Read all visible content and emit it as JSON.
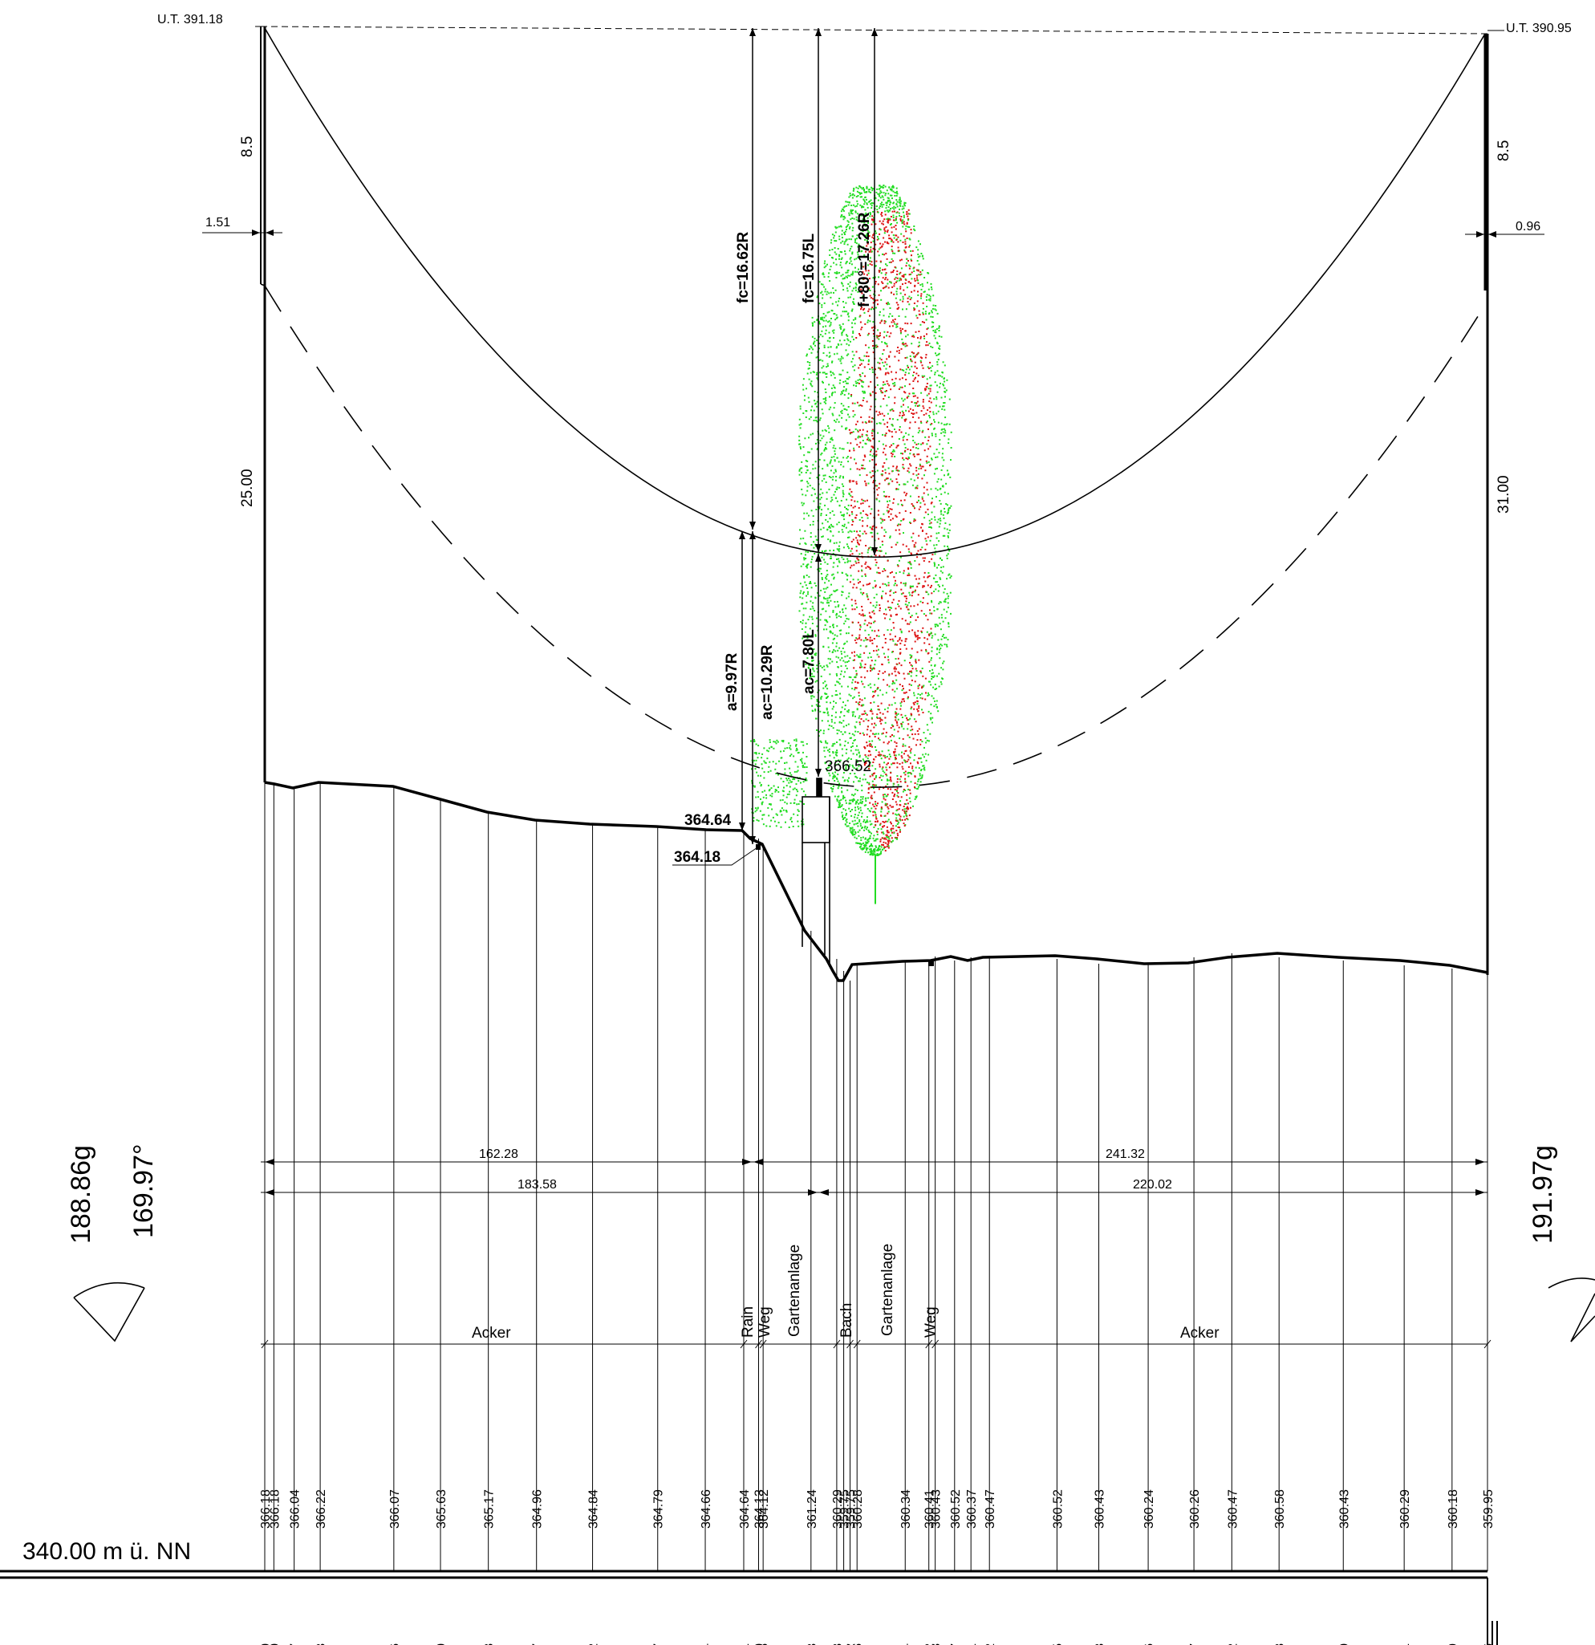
{
  "profile": {
    "left_span": {
      "name": "U.T. 391.18",
      "height_top": "8.5",
      "offset": "1.51",
      "height_main": "25.00",
      "angle_gon": "188.86g",
      "angle_deg": "169.97°"
    },
    "right_span": {
      "name": "U.T. 390.95",
      "height_top": "8.5",
      "offset": "0.96",
      "height_main": "31.00",
      "angle_gon": "191.97g"
    },
    "sag_labels": [
      "fc=16.62R",
      "fc=16.75L",
      "f+80°=17.26R"
    ],
    "clearance_labels": [
      "a=9.97R",
      "ac=10.29R",
      "ac=7.80L"
    ],
    "point_labels": [
      "366.52",
      "364.64",
      "364.18"
    ],
    "span_dims": {
      "left_a": "162.28",
      "right_a": "241.32",
      "left_b": "183.58",
      "right_b": "220.02"
    },
    "datum": "340.00 m ü. NN",
    "land_use": [
      "Acker",
      "Rain",
      "Weg",
      "Gartenanlage",
      "Bach",
      "Gartenanlage",
      "Weg",
      "Acker"
    ],
    "stations": [
      {
        "h": "366.18",
        "d": "0.0"
      },
      {
        "h": "366.18",
        "d": "3.0"
      },
      {
        "h": "366.04",
        "d": "9.7"
      },
      {
        "h": "366.22",
        "d": "18.3"
      },
      {
        "h": "366.07",
        "d": "42.6"
      },
      {
        "h": "365.63",
        "d": "58.0"
      },
      {
        "h": "365.17",
        "d": "73.8"
      },
      {
        "h": "364.96",
        "d": "89.7"
      },
      {
        "h": "364.84",
        "d": "108.2"
      },
      {
        "h": "364.79",
        "d": "129.7"
      },
      {
        "h": "364.66",
        "d": "145.4"
      },
      {
        "h": "364.64",
        "d": "158.1"
      },
      {
        "h": "364.13",
        "d": "163.0"
      },
      {
        "h": "364.12",
        "d": "164.5"
      },
      {
        "h": "361.24",
        "d": "180.3"
      },
      {
        "h": "360.29",
        "d": "188.8"
      },
      {
        "h": "359.75",
        "d": "191.1"
      },
      {
        "h": "359.75",
        "d": "193.2"
      },
      {
        "h": "360.28",
        "d": "195.5"
      },
      {
        "h": "360.34",
        "d": "211.4"
      },
      {
        "h": "360.41",
        "d": "219.2"
      },
      {
        "h": "360.43",
        "d": "221.3"
      },
      {
        "h": "360.52",
        "d": "227.7"
      },
      {
        "h": "360.37",
        "d": "233.1"
      },
      {
        "h": "360.47",
        "d": "239.2"
      },
      {
        "h": "360.52",
        "d": "261.5"
      },
      {
        "h": "360.43",
        "d": "275.3"
      },
      {
        "h": "360.24",
        "d": "291.6"
      },
      {
        "h": "360.26",
        "d": "306.7"
      },
      {
        "h": "360.47",
        "d": "319.2"
      },
      {
        "h": "360.58",
        "d": "334.8"
      },
      {
        "h": "360.43",
        "d": "356.0"
      },
      {
        "h": "360.29",
        "d": "376.1"
      },
      {
        "h": "360.18",
        "d": "391.9"
      },
      {
        "h": "359.95",
        "d": "403.6"
      }
    ],
    "colors": {
      "line": "#000000",
      "vegetation_green": "#22dd22",
      "vegetation_red": "#dd1111"
    }
  }
}
